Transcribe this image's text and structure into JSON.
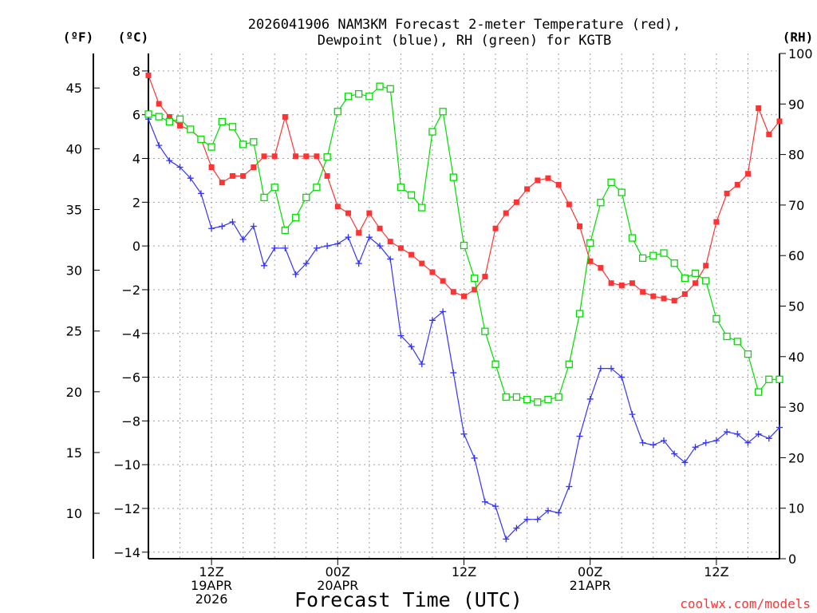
{
  "chart_data": {
    "type": "line",
    "title_line1": "2026041906 NAM3KM Forecast 2-meter Temperature (red),",
    "title_line2": "Dewpoint (blue), RH (green) for KGTB",
    "xlabel": "Forecast Time (UTC)",
    "credit": "coolwx.com/models",
    "left_unit_f": "(ºF)",
    "left_unit_c": "(ºC)",
    "right_unit": "(RH)",
    "x_range_hours": [
      0,
      60
    ],
    "ylim_c": [
      -14.3,
      8.8
    ],
    "ylim_rh": [
      0,
      100
    ],
    "x_ticks": [
      {
        "hour": 6,
        "line1": "12Z",
        "line2": "19APR",
        "line3": "2026"
      },
      {
        "hour": 18,
        "line1": "00Z",
        "line2": "20APR",
        "line3": ""
      },
      {
        "hour": 30,
        "line1": "12Z",
        "line2": "",
        "line3": ""
      },
      {
        "hour": 42,
        "line1": "00Z",
        "line2": "21APR",
        "line3": ""
      },
      {
        "hour": 54,
        "line1": "12Z",
        "line2": "",
        "line3": ""
      }
    ],
    "y_ticks_c": [
      "8",
      "6",
      "4",
      "2",
      "0",
      "−2",
      "−4",
      "−6",
      "−8",
      "−10",
      "−12",
      "−14"
    ],
    "y_ticks_f": [
      "45",
      "40",
      "35",
      "30",
      "25",
      "20",
      "15",
      "10"
    ],
    "y_ticks_rh": [
      "100",
      "90",
      "80",
      "70",
      "60",
      "50",
      "40",
      "30",
      "20",
      "10",
      "0"
    ],
    "series": [
      {
        "name": "Temperature",
        "units": "C",
        "color": "#ff3333",
        "marker": "filled-square",
        "values": [
          7.8,
          6.5,
          5.9,
          5.5,
          5.3,
          4.9,
          3.6,
          2.9,
          3.2,
          3.2,
          3.6,
          4.1,
          4.1,
          5.9,
          4.1,
          4.1,
          4.1,
          3.2,
          1.8,
          1.5,
          0.6,
          1.5,
          0.8,
          0.2,
          -0.1,
          -0.4,
          -0.8,
          -1.2,
          -1.6,
          -2.1,
          -2.3,
          -2.0,
          -1.4,
          0.8,
          1.5,
          2.0,
          2.6,
          3.0,
          3.1,
          2.8,
          1.9,
          0.9,
          -0.7,
          -1.0,
          -1.7,
          -1.8,
          -1.7,
          -2.1,
          -2.3,
          -2.4,
          -2.5,
          -2.2,
          -1.7,
          -0.9,
          1.1,
          2.4,
          2.8,
          3.3,
          6.3,
          5.1,
          5.7
        ]
      },
      {
        "name": "Dewpoint",
        "units": "C",
        "color": "#3333ff",
        "marker": "plus",
        "values": [
          5.8,
          4.6,
          3.9,
          3.6,
          3.1,
          2.4,
          0.8,
          0.9,
          1.1,
          0.3,
          0.9,
          -0.9,
          -0.1,
          -0.1,
          -1.3,
          -0.8,
          -0.1,
          0.0,
          0.1,
          0.4,
          -0.8,
          0.4,
          0.0,
          -0.6,
          -4.1,
          -4.6,
          -5.4,
          -3.4,
          -3.0,
          -5.8,
          -8.6,
          -9.7,
          -11.7,
          -11.9,
          -13.4,
          -12.9,
          -12.5,
          -12.5,
          -12.1,
          -12.2,
          -11.0,
          -8.7,
          -7.0,
          -5.6,
          -5.6,
          -6.0,
          -7.7,
          -9.0,
          -9.1,
          -8.9,
          -9.5,
          -9.9,
          -9.2,
          -9.0,
          -8.9,
          -8.5,
          -8.6,
          -9.0,
          -8.6,
          -8.8,
          -8.3
        ]
      },
      {
        "name": "RH",
        "units": "%",
        "color": "#00dd00",
        "marker": "open-square",
        "values": [
          88,
          87.5,
          86.5,
          87,
          85,
          83,
          81.5,
          86.5,
          85.5,
          82,
          82.5,
          71.5,
          73.5,
          65,
          67.5,
          71.5,
          73.5,
          79.5,
          88.5,
          91.5,
          92,
          91.5,
          93.5,
          93,
          73.5,
          72,
          69.5,
          84.5,
          88.5,
          75.5,
          62,
          55.5,
          45,
          38.5,
          32,
          32,
          31.5,
          31,
          31.5,
          32,
          38.5,
          48.5,
          62.5,
          70.5,
          74.5,
          72.5,
          63.5,
          59.5,
          60,
          60.5,
          58.5,
          55.5,
          56.5,
          55,
          47.5,
          44,
          43,
          40.5,
          33,
          35.5,
          35.5
        ]
      }
    ]
  }
}
